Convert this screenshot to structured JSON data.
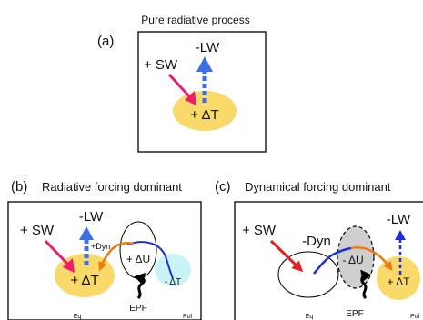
{
  "panel_a": {
    "title": "Pure radiative process",
    "label": "(a)",
    "lw": "-LW",
    "sw": "+ SW",
    "dt": "+ ΔT"
  },
  "panel_b": {
    "label": "(b)",
    "title": "Radiative forcing dominant",
    "lw": "-LW",
    "sw": "+ SW",
    "dyn": "+Dyn",
    "dt": "+ ΔT",
    "du": "+ ΔU",
    "dt_pol": "- ΔT",
    "epf": "EPF",
    "eq": "Eq",
    "pol": "Pol"
  },
  "panel_c": {
    "label": "(c)",
    "title": "Dynamical forcing dominant",
    "sw": "+ SW",
    "dyn": "-Dyn",
    "du": "- ΔU",
    "lw": "-LW",
    "dt": "+ ΔT",
    "epf": "EPF",
    "eq": "Eq",
    "pol": "Pol"
  },
  "colors": {
    "warm_blob": "#f9d96a",
    "cool_blob": "#c9f3f6",
    "shaded_blob": "#cfcfcf",
    "sw_arrow": "#ee1c6e",
    "sw_arrow_c": "#e62020",
    "lw_arrow": "#3a6fe8",
    "jet_blue": "#1b2fd6",
    "jet_orange": "#f07a10"
  }
}
